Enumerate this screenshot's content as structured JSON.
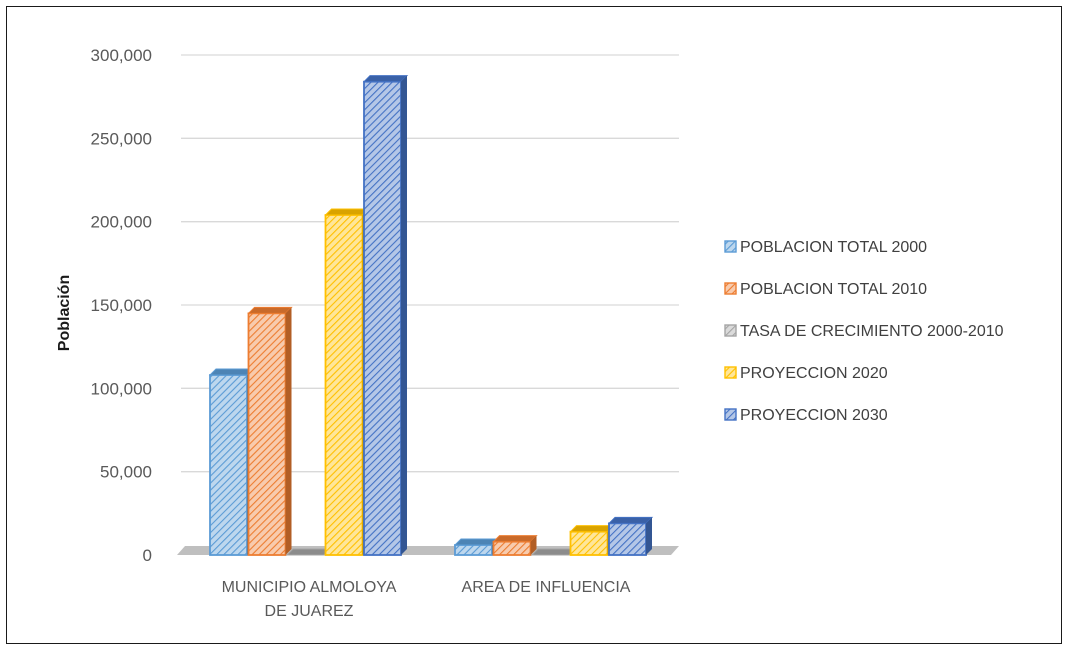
{
  "chart_data": {
    "type": "bar",
    "title": "",
    "xlabel": "",
    "ylabel": "Población",
    "ylim": [
      0,
      300000
    ],
    "yticks": [
      0,
      50000,
      100000,
      150000,
      200000,
      250000,
      300000
    ],
    "ytick_labels": [
      "0",
      "50,000",
      "100,000",
      "150,000",
      "200,000",
      "250,000",
      "300,000"
    ],
    "categories": [
      "MUNICIPIO ALMOLOYA DE JUAREZ",
      "AREA DE INFLUENCIA"
    ],
    "category_lines": [
      [
        "MUNICIPIO ALMOLOYA",
        "DE JUAREZ"
      ],
      [
        "AREA DE INFLUENCIA"
      ]
    ],
    "grid": true,
    "legend_position": "right",
    "style": "3d-clustered-hatched",
    "series": [
      {
        "name": "POBLACION TOTAL 2000",
        "color": "#5b9bd5",
        "values": [
          108000,
          6000
        ]
      },
      {
        "name": "POBLACION TOTAL 2010",
        "color": "#ed7d31",
        "values": [
          145000,
          8000
        ]
      },
      {
        "name": "TASA DE CRECIMIENTO 2000-2010",
        "color": "#a5a5a5",
        "values": [
          0,
          0
        ]
      },
      {
        "name": "PROYECCION 2020",
        "color": "#ffc000",
        "values": [
          204000,
          14000
        ]
      },
      {
        "name": "PROYECCION 2030",
        "color": "#4472c4",
        "values": [
          284000,
          19000
        ]
      }
    ]
  }
}
